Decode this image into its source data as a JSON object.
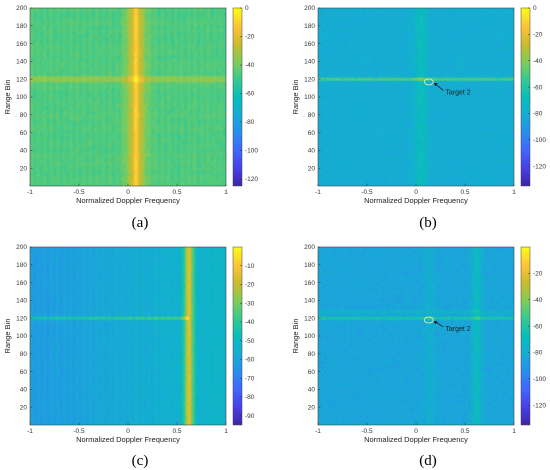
{
  "colors": {
    "colormap": "parula",
    "low": "#3e26a8",
    "high": "#f9fb15"
  },
  "chart_data": [
    {
      "type": "heatmap",
      "caption": "(a)",
      "xlabel": "Normalized Doppler Frequency",
      "ylabel": "Range Bin",
      "xlim": [
        -1,
        1
      ],
      "ylim": [
        0,
        200
      ],
      "xticks": [
        -1,
        -0.5,
        0,
        0.5,
        1
      ],
      "xtick_labels": [
        "-1",
        "-0.5",
        "0",
        "0.5",
        "1"
      ],
      "yticks": [
        20,
        40,
        60,
        80,
        100,
        120,
        140,
        160,
        180,
        200
      ],
      "yticks_labels": [
        "20",
        "40",
        "60",
        "80",
        "100",
        "120",
        "140",
        "160",
        "180",
        "200"
      ],
      "colorbar": {
        "clim": [
          -125,
          0
        ],
        "ticks": [
          0,
          -20,
          -40,
          -60,
          -80,
          -100,
          -120
        ],
        "tick_labels": [
          "0",
          "-20",
          "-40",
          "-60",
          "-80",
          "-100",
          "-120"
        ]
      },
      "field": {
        "base": -46,
        "noise": 4,
        "column_stripes": true,
        "blockiness": 1,
        "ridges": [
          {
            "x": 0.08,
            "width": 0.1,
            "amp": 22
          },
          {
            "x": 0.08,
            "width": 0.03,
            "amp": 14
          }
        ],
        "bands": [
          {
            "y": 120,
            "amp": 30
          }
        ]
      },
      "annotation": null
    },
    {
      "type": "heatmap",
      "caption": "(b)",
      "xlabel": "Normalized Doppler Frequency",
      "ylabel": "Range Bin",
      "xlim": [
        -1,
        1
      ],
      "ylim": [
        0,
        200
      ],
      "xticks": [
        -1,
        -0.5,
        0,
        0.5,
        1
      ],
      "xtick_labels": [
        "-1",
        "-0.5",
        "0",
        "0.5",
        "1"
      ],
      "yticks": [
        20,
        40,
        60,
        80,
        100,
        120,
        140,
        160,
        180,
        200
      ],
      "yticks_labels": [
        "20",
        "40",
        "60",
        "80",
        "100",
        "120",
        "140",
        "160",
        "180",
        "200"
      ],
      "colorbar": {
        "clim": [
          -135,
          0
        ],
        "ticks": [
          0,
          -20,
          -40,
          -60,
          -80,
          -100,
          -120
        ],
        "tick_labels": [
          "0",
          "-20",
          "-40",
          "-60",
          "-80",
          "-100",
          "-120"
        ]
      },
      "field": {
        "base": -80,
        "noise": 7,
        "column_stripes": false,
        "blockiness": 0,
        "ridges": [
          {
            "x": 0.05,
            "width": 0.06,
            "amp": 12
          }
        ],
        "bands": [
          {
            "y": 120,
            "amp": 38
          }
        ]
      },
      "annotation": {
        "label": "Target 2",
        "x": 0.13,
        "y": 117,
        "text_x": 0.3,
        "text_y": 105
      }
    },
    {
      "type": "heatmap",
      "caption": "(c)",
      "xlabel": "Normalized Doppler Frequency",
      "ylabel": "Range Bin",
      "xlim": [
        -1,
        1
      ],
      "ylim": [
        0,
        200
      ],
      "xticks": [
        -1,
        -0.5,
        0,
        0.5,
        1
      ],
      "xtick_labels": [
        "-1",
        "-0.5",
        "0",
        "0.5",
        "1"
      ],
      "yticks": [
        20,
        40,
        60,
        80,
        100,
        120,
        140,
        160,
        180,
        200
      ],
      "yticks_labels": [
        "20",
        "40",
        "60",
        "80",
        "100",
        "120",
        "140",
        "160",
        "180",
        "200"
      ],
      "colorbar": {
        "clim": [
          -95,
          0
        ],
        "ticks": [
          -10,
          -20,
          -30,
          -40,
          -50,
          -60,
          -70,
          -80,
          -90
        ],
        "tick_labels": [
          "-10",
          "-20",
          "-30",
          "-40",
          "-50",
          "-60",
          "-70",
          "-80",
          "-90"
        ]
      },
      "field": {
        "base": -58,
        "noise": 3,
        "column_stripes": true,
        "blockiness": 0,
        "gradient": {
          "from": -4,
          "to": 6
        },
        "ridges": [
          {
            "x": 0.62,
            "width": 0.05,
            "amp": 38
          }
        ],
        "bands": [
          {
            "y": 120,
            "amp": 22,
            "x_from": -1,
            "x_to": 0.62
          }
        ]
      },
      "annotation": null
    },
    {
      "type": "heatmap",
      "caption": "(d)",
      "xlabel": "Normalized Doppler Frequency",
      "ylabel": "Range Bin",
      "xlim": [
        -1,
        1
      ],
      "ylim": [
        0,
        200
      ],
      "xticks": [
        -1,
        -0.5,
        0,
        0.5,
        1
      ],
      "xtick_labels": [
        "-1",
        "-0.5",
        "0",
        "0.5",
        "1"
      ],
      "yticks": [
        20,
        40,
        60,
        80,
        100,
        120,
        140,
        160,
        180,
        200
      ],
      "yticks_labels": [
        "20",
        "40",
        "60",
        "80",
        "100",
        "120",
        "140",
        "160",
        "180",
        "200"
      ],
      "colorbar": {
        "clim": [
          -135,
          0
        ],
        "ticks": [
          -20,
          -40,
          -60,
          -80,
          -100,
          -120
        ],
        "tick_labels": [
          "-20",
          "-40",
          "-60",
          "-80",
          "-100",
          "-120"
        ]
      },
      "field": {
        "base": -84,
        "noise": 8,
        "column_stripes": false,
        "blockiness": 0,
        "ridges": [
          {
            "x": 0.62,
            "width": 0.05,
            "amp": 14
          },
          {
            "x": 0.14,
            "width": 0.05,
            "amp": 6
          }
        ],
        "bands": [
          {
            "y": 120,
            "amp": 28
          },
          {
            "y": 127,
            "amp": 10
          }
        ]
      },
      "annotation": {
        "label": "Target 2",
        "x": 0.13,
        "y": 118,
        "text_x": 0.3,
        "text_y": 108
      }
    }
  ]
}
